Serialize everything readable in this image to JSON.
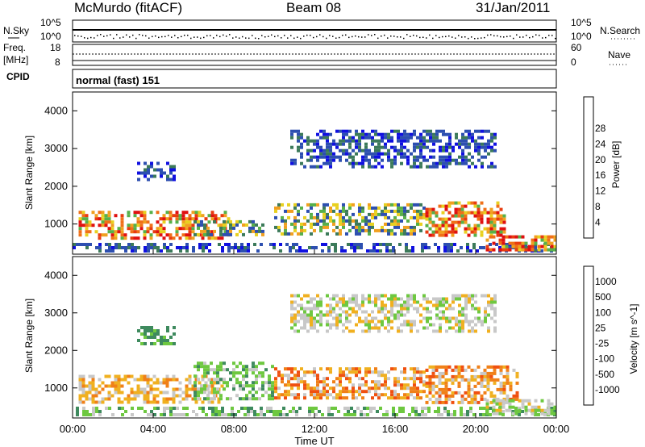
{
  "header": {
    "station": "McMurdo (fitACF)",
    "beam": "Beam 08",
    "date": "31/Jan/2011"
  },
  "top_panels": {
    "nsky_label": "N.Sky",
    "nsky_ticks": [
      "10^5",
      "10^0"
    ],
    "nsearch_label": "N.Search",
    "nsearch_ticks": [
      "10^5",
      "10^0"
    ],
    "freq_label_1": "Freq.",
    "freq_label_2": "[MHz]",
    "freq_ticks": [
      "18",
      "8"
    ],
    "nave_label": "Nave",
    "nave_ticks": [
      "60",
      "0"
    ],
    "cpid_label": "CPID",
    "cpid_value": "normal (fast) 151"
  },
  "chart_data": [
    {
      "type": "heatmap",
      "title": "",
      "xlabel": "Time UT",
      "ylabel": "Slant Range [km]",
      "x_ticks": [
        "00:00",
        "04:00",
        "08:00",
        "12:00",
        "16:00",
        "20:00",
        "00:00"
      ],
      "y_ticks": [
        "1000",
        "2000",
        "3000",
        "4000"
      ],
      "ylim": [
        200,
        4500
      ],
      "colorbar_label": "Power [dB]",
      "colorbar_ticks": [
        "4",
        "8",
        "12",
        "16",
        "20",
        "24",
        "28"
      ],
      "colorbar_colors": [
        "#1010e0",
        "#2d4fb0",
        "#3c7a5a",
        "#57b04a",
        "#e8d020",
        "#f0a020",
        "#f07018",
        "#e83c10",
        "#e01010"
      ],
      "echo_regions": [
        {
          "t_start": 0.0,
          "t_end": 24.0,
          "r_min": 250,
          "r_max": 500,
          "level": "low"
        },
        {
          "t_start": 0.3,
          "t_end": 7.8,
          "r_min": 600,
          "r_max": 1350,
          "level": "high"
        },
        {
          "t_start": 3.2,
          "t_end": 5.0,
          "r_min": 2200,
          "r_max": 2650,
          "level": "low"
        },
        {
          "t_start": 6.0,
          "t_end": 9.5,
          "r_min": 700,
          "r_max": 1100,
          "level": "mid"
        },
        {
          "t_start": 10.0,
          "t_end": 17.5,
          "r_min": 700,
          "r_max": 1550,
          "level": "mid"
        },
        {
          "t_start": 10.8,
          "t_end": 21.0,
          "r_min": 2500,
          "r_max": 3500,
          "level": "low"
        },
        {
          "t_start": 17.5,
          "t_end": 21.5,
          "r_min": 700,
          "r_max": 1600,
          "level": "high"
        },
        {
          "t_start": 20.5,
          "t_end": 24.0,
          "r_min": 300,
          "r_max": 700,
          "level": "high"
        }
      ]
    },
    {
      "type": "heatmap",
      "title": "",
      "xlabel": "Time UT",
      "ylabel": "Slant Range [km]",
      "x_ticks": [
        "00:00",
        "04:00",
        "08:00",
        "12:00",
        "16:00",
        "20:00",
        "00:00"
      ],
      "y_ticks": [
        "1000",
        "2000",
        "3000",
        "4000"
      ],
      "ylim": [
        200,
        4500
      ],
      "colorbar_label": "Velocity [m s^-1]",
      "colorbar_ticks": [
        "1000",
        "500",
        "100",
        "25",
        "-25",
        "-100",
        "-500",
        "-1000"
      ],
      "colorbar_colors": [
        "#1a3ad0",
        "#2f6aa8",
        "#3e8a5e",
        "#6ec840",
        "#c8c8c8",
        "#f0b020",
        "#f08018",
        "#f05010",
        "#e81010"
      ],
      "echo_regions": [
        {
          "t_start": 0.0,
          "t_end": 24.0,
          "r_min": 250,
          "r_max": 500,
          "level": "green"
        },
        {
          "t_start": 0.3,
          "t_end": 7.5,
          "r_min": 600,
          "r_max": 1350,
          "level": "yellow"
        },
        {
          "t_start": 3.2,
          "t_end": 5.0,
          "r_min": 2200,
          "r_max": 2650,
          "level": "darkgreen"
        },
        {
          "t_start": 6.0,
          "t_end": 10.0,
          "r_min": 700,
          "r_max": 1700,
          "level": "green"
        },
        {
          "t_start": 10.0,
          "t_end": 17.5,
          "r_min": 700,
          "r_max": 1550,
          "level": "orange"
        },
        {
          "t_start": 10.8,
          "t_end": 21.0,
          "r_min": 2500,
          "r_max": 3500,
          "level": "grey"
        },
        {
          "t_start": 17.5,
          "t_end": 22.0,
          "r_min": 600,
          "r_max": 1600,
          "level": "orange"
        },
        {
          "t_start": 20.5,
          "t_end": 24.0,
          "r_min": 300,
          "r_max": 700,
          "level": "grey"
        }
      ]
    }
  ]
}
